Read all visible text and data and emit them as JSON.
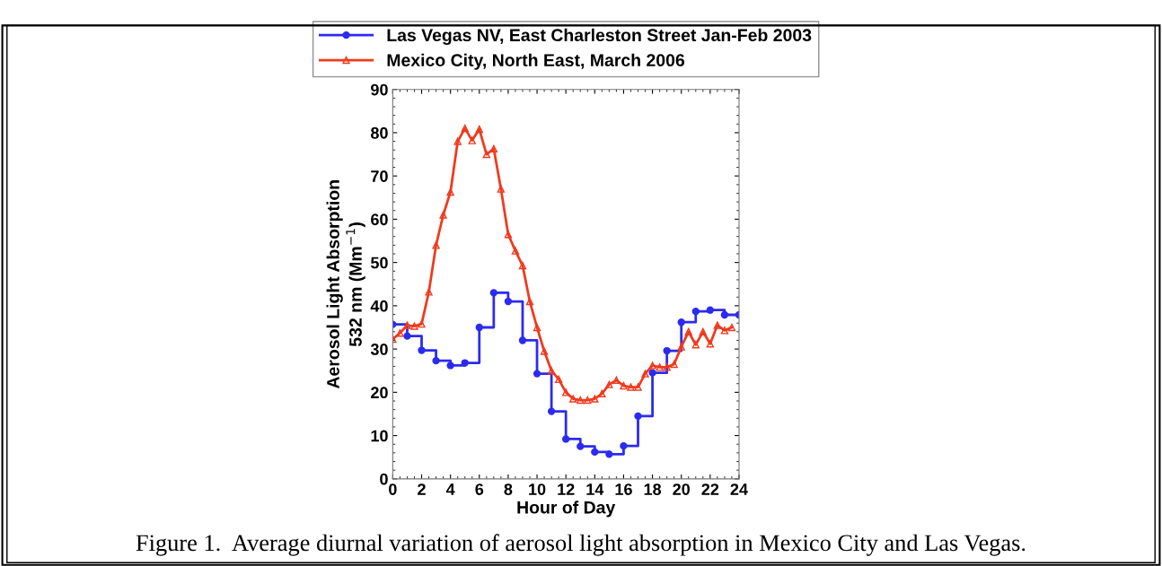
{
  "chart_data": {
    "type": "line",
    "xlabel": "Hour of Day",
    "ylabel": "Aerosol Light Absorption\n532 nm (Mm$^{−1}$)",
    "annotations": [
      "Figure 1.  Average diurnal variation of aerosol light absorption in Mexico City and Las Vegas."
    ],
    "xlim": [
      0,
      24
    ],
    "xticks": [
      0,
      2,
      4,
      6,
      8,
      10,
      12,
      14,
      16,
      18,
      20,
      22,
      24
    ],
    "ylim": [
      0,
      90
    ],
    "yticks": [
      0,
      10,
      20,
      30,
      40,
      50,
      60,
      70,
      80,
      90
    ],
    "grid": false,
    "legend": "top",
    "line_style": "solid",
    "series": [
      {
        "name": "Las Vegas NV, East Charleston Street Jan-Feb 2003",
        "type": "step",
        "marker": "circle",
        "color": "#2b2bf0",
        "x": [
          0,
          1,
          2,
          3,
          4,
          5,
          6,
          7,
          8,
          9,
          10,
          11,
          12,
          13,
          14,
          15,
          16,
          17,
          18,
          19,
          20,
          21,
          22,
          23,
          24
        ],
        "values": [
          35.7,
          33,
          29.7,
          27.3,
          26.2,
          26.8,
          35,
          43,
          41,
          32,
          24.3,
          15.6,
          9.2,
          7.5,
          6.2,
          5.7,
          7.6,
          14.5,
          24.5,
          29.6,
          36.2,
          38.7,
          39,
          37.9,
          37.9
        ]
      },
      {
        "name": "Mexico City, North East, March 2006",
        "marker": "triangle",
        "color": "#f03a1e",
        "x": [
          0,
          0.5,
          1,
          1.5,
          2,
          2.5,
          3,
          3.5,
          4,
          4.5,
          5,
          5.5,
          6,
          6.5,
          7,
          7.5,
          8,
          8.5,
          9,
          9.5,
          10,
          10.5,
          11,
          11.5,
          12,
          12.5,
          13,
          13.5,
          14,
          14.5,
          15,
          15.5,
          16,
          16.5,
          17,
          17.5,
          18,
          18.5,
          19,
          19.5,
          20,
          20.5,
          21,
          21.5,
          22,
          22.5,
          23,
          23.5
        ],
        "values": [
          32.3,
          33.7,
          35.5,
          35.3,
          35.8,
          43.2,
          54,
          61,
          66.3,
          78,
          81,
          78.2,
          80.8,
          75,
          76.3,
          67,
          56.5,
          52.7,
          49.3,
          41,
          35,
          29.5,
          25,
          23,
          20,
          18.5,
          18.2,
          18.2,
          18.5,
          19.7,
          21.8,
          22.8,
          21.5,
          21.2,
          21.2,
          24.3,
          26.2,
          25.8,
          25.8,
          26.5,
          30.5,
          34,
          31,
          34,
          31.2,
          35.5,
          34.3,
          35
        ]
      }
    ]
  }
}
